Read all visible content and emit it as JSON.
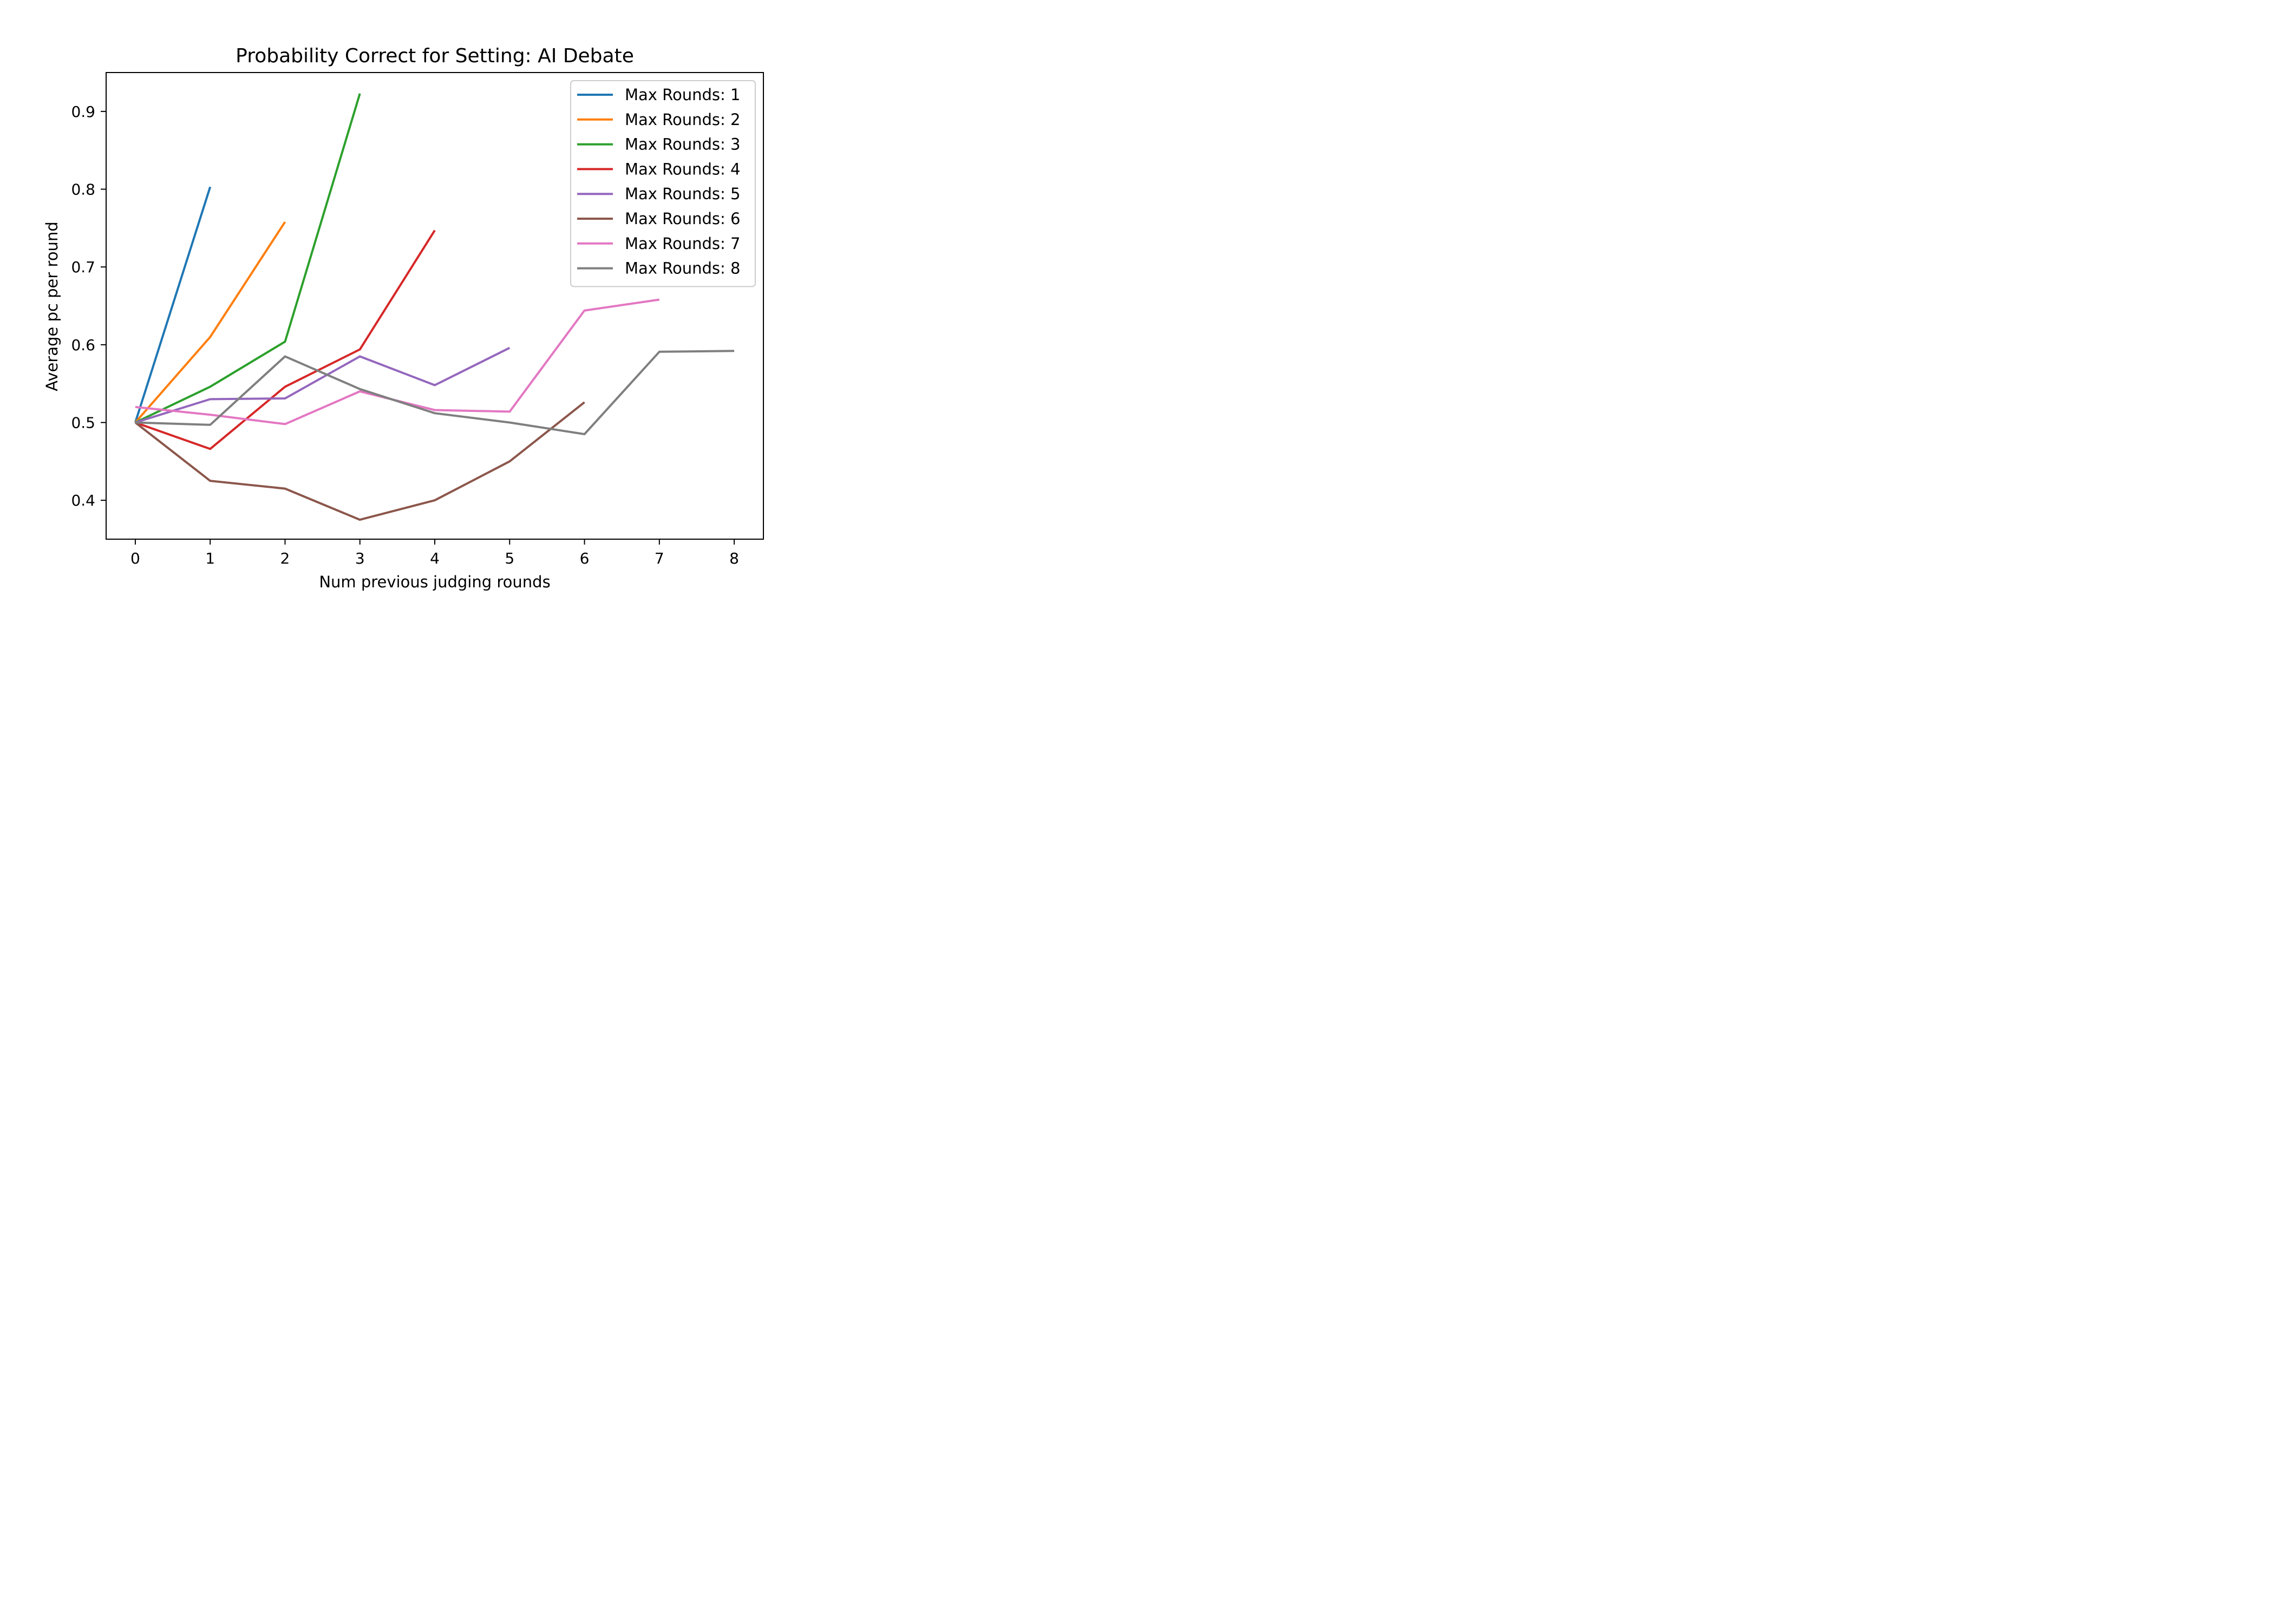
{
  "chart_data": {
    "type": "line",
    "title": "Probability Correct for Setting: AI Debate",
    "xlabel": "Num previous judging rounds",
    "ylabel": "Average pc per round",
    "xlim": [
      -0.39,
      8.39
    ],
    "ylim": [
      0.35,
      0.95
    ],
    "xticks": [
      0,
      1,
      2,
      3,
      4,
      5,
      6,
      7,
      8
    ],
    "yticks": [
      0.4,
      0.5,
      0.6,
      0.7,
      0.8,
      0.9
    ],
    "xtick_labels": [
      "0",
      "1",
      "2",
      "3",
      "4",
      "5",
      "6",
      "7",
      "8"
    ],
    "ytick_labels": [
      "0.4",
      "0.5",
      "0.6",
      "0.7",
      "0.8",
      "0.9"
    ],
    "grid": false,
    "legend_position": "top-right",
    "series": [
      {
        "name": "Max Rounds: 1",
        "color": "#1f77b4",
        "x": [
          0,
          1
        ],
        "values": [
          0.5,
          0.803
        ]
      },
      {
        "name": "Max Rounds: 2",
        "color": "#ff7f0e",
        "x": [
          0,
          1,
          2
        ],
        "values": [
          0.5,
          0.61,
          0.758
        ]
      },
      {
        "name": "Max Rounds: 3",
        "color": "#2ca02c",
        "x": [
          0,
          1,
          2,
          3
        ],
        "values": [
          0.5,
          0.546,
          0.604,
          0.923
        ]
      },
      {
        "name": "Max Rounds: 4",
        "color": "#d62728",
        "x": [
          0,
          1,
          2,
          3,
          4
        ],
        "values": [
          0.5,
          0.466,
          0.546,
          0.594,
          0.747
        ]
      },
      {
        "name": "Max Rounds: 5",
        "color": "#9467bd",
        "x": [
          0,
          1,
          2,
          3,
          4,
          5
        ],
        "values": [
          0.5,
          0.53,
          0.531,
          0.585,
          0.548,
          0.596
        ]
      },
      {
        "name": "Max Rounds: 6",
        "color": "#8c564b",
        "x": [
          0,
          1,
          2,
          3,
          4,
          5,
          6
        ],
        "values": [
          0.5,
          0.425,
          0.415,
          0.375,
          0.4,
          0.45,
          0.526
        ]
      },
      {
        "name": "Max Rounds: 7",
        "color": "#e377c2",
        "x": [
          0,
          1,
          2,
          3,
          4,
          5,
          6,
          7
        ],
        "values": [
          0.52,
          0.51,
          0.498,
          0.54,
          0.516,
          0.514,
          0.644,
          0.658
        ]
      },
      {
        "name": "Max Rounds: 8",
        "color": "#7f7f7f",
        "x": [
          0,
          1,
          2,
          3,
          4,
          5,
          6,
          7,
          8
        ],
        "values": [
          0.5,
          0.497,
          0.585,
          0.543,
          0.512,
          0.5,
          0.485,
          0.591,
          0.592
        ]
      }
    ]
  }
}
